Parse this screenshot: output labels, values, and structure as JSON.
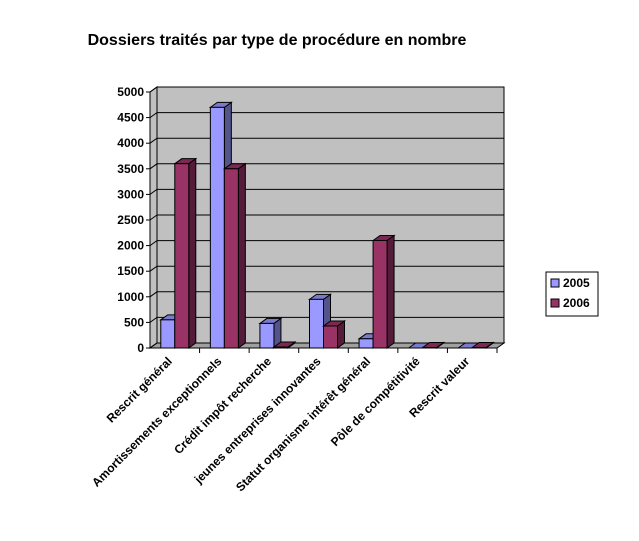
{
  "chart_data": {
    "type": "bar3d",
    "title": "Dossiers traités par type de procédure en nombre",
    "categories": [
      "Rescrit général",
      "Amortissements exceptionnels",
      "Crédit impôt recherche",
      "jeunes entreprises innovantes",
      "Statut organisme intérêt général",
      "Pôle de compétitivité",
      "Rescrit valeur"
    ],
    "series": [
      {
        "name": "2005",
        "color": "#9999ff",
        "values": [
          550,
          4700,
          480,
          950,
          180,
          0,
          0
        ]
      },
      {
        "name": "2006",
        "color": "#993366",
        "values": [
          3600,
          3500,
          20,
          430,
          2100,
          10,
          10
        ]
      }
    ],
    "ylim": [
      0,
      5000
    ],
    "yticks": [
      0,
      500,
      1000,
      1500,
      2000,
      2500,
      3000,
      3500,
      4000,
      4500,
      5000
    ],
    "grid": true,
    "legend": "right"
  }
}
